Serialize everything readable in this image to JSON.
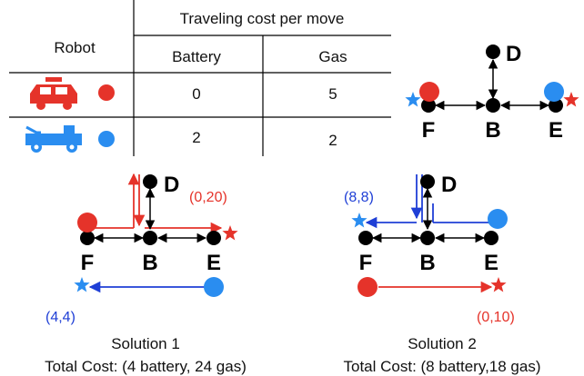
{
  "colors": {
    "red": "#e5332a",
    "blue": "#2a8df0",
    "arrow_red": "#e5332a",
    "arrow_blue": "#1f3fd6",
    "black": "#000000",
    "star_red": "#e5332a",
    "star_blue": "#2a8df0"
  },
  "table": {
    "robot_header": "Robot",
    "cost_header": "Traveling cost per move",
    "col_battery": "Battery",
    "col_gas": "Gas",
    "rows": [
      {
        "robot": "red-car-icon",
        "battery": "0",
        "gas": "5"
      },
      {
        "robot": "blue-jeep-icon",
        "battery": "2",
        "gas": "2"
      }
    ]
  },
  "graph": {
    "nodes": {
      "d": "D",
      "f": "F",
      "b": "B",
      "e": "E"
    }
  },
  "solution1": {
    "nodes": {
      "d": "D",
      "f": "F",
      "b": "B",
      "e": "E"
    },
    "red_coord": "(0,20)",
    "blue_coord": "(4,4)",
    "title": "Solution 1",
    "cost": "Total Cost: (4 battery, 24 gas)"
  },
  "solution2": {
    "nodes": {
      "d": "D",
      "f": "F",
      "b": "B",
      "e": "E"
    },
    "blue_coord": "(8,8)",
    "red_coord": "(0,10)",
    "title": "Solution 2",
    "cost": "Total Cost: (8 battery,18 gas)"
  }
}
